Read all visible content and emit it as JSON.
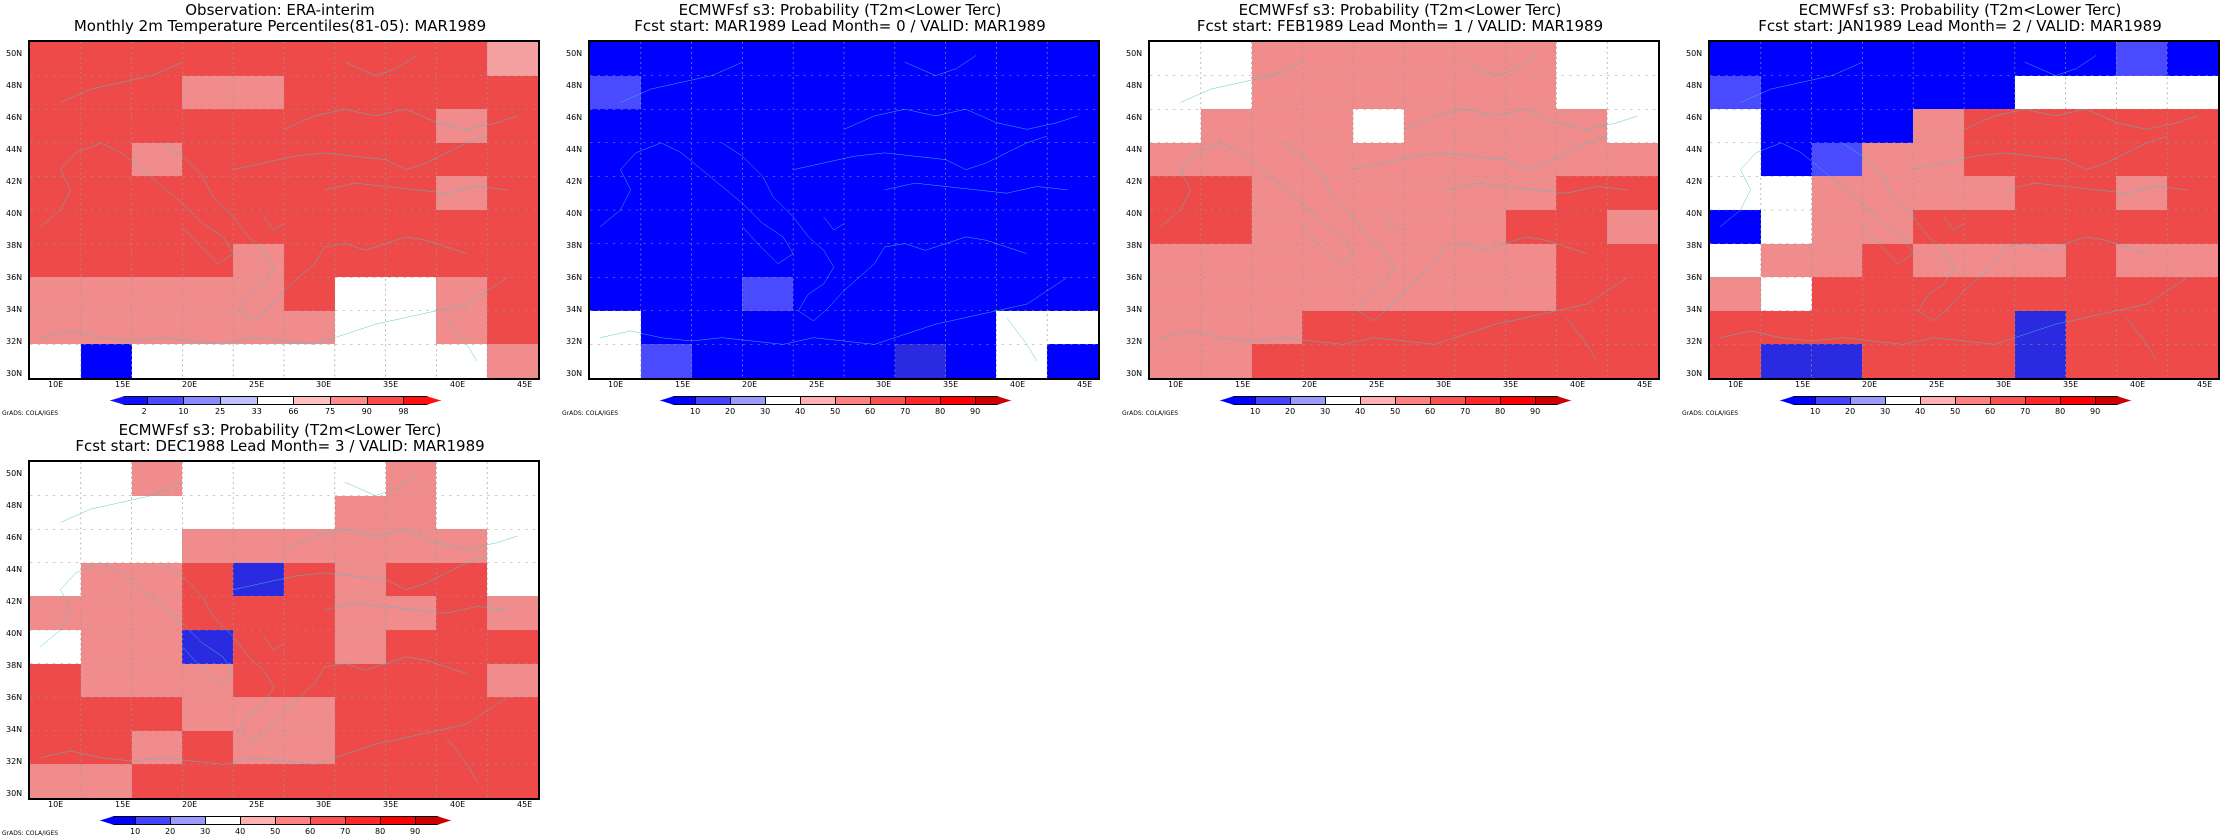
{
  "panels": [
    {
      "title_line1": "Observation: ERA-interim",
      "title_line2": "Monthly 2m Temperature Percentiles(81-05): MAR1989",
      "kind": "obs",
      "grid_pattern": [
        "RRRRRRRRRX",
        "RRRLLRRRRR",
        "RRRRRRRRLR",
        "RRLRRRRRRR",
        "RRRRRRRRLR",
        "RRRRRRRRRR",
        "RRRRLRRRRR",
        "LLLLLRWWLR",
        "LLLLLLWWLR",
        "WBWWWWWWWL"
      ]
    },
    {
      "title_line1": "ECMWFsf s3: Probability (T2m<Lower Terc)",
      "title_line2": "Fcst start: MAR1989   Lead Month= 0 / VALID: MAR1989",
      "kind": "prob",
      "grid_pattern": [
        "BBBBBBBBBB",
        "MBBBBBBBBB",
        "BBBBBBBBBB",
        "BBBBBBBBBB",
        "BBBBBBBBBB",
        "BBBBBBBBBB",
        "BBBBBBBBBB",
        "BBBMBBBBBB",
        "WBBBBBBBWW",
        "WMBBBBDBWB"
      ]
    },
    {
      "title_line1": "ECMWFsf s3: Probability (T2m<Lower Terc)",
      "title_line2": "Fcst start: FEB1989   Lead Month= 1 / VALID: MAR1989",
      "kind": "prob",
      "grid_pattern": [
        "WWLLLLLLWW",
        "WWLLLLLLWW",
        "WLLLWLLLLW",
        "LLLLLLLLLL",
        "RRLLLLLLRR",
        "RRLLLLLRRL",
        "LLLLLLLLRR",
        "LLLLLLLLRR",
        "LLLRRRRRRR",
        "LLRRRRRRRR"
      ]
    },
    {
      "title_line1": "ECMWFsf s3: Probability (T2m<Lower Terc)",
      "title_line2": "Fcst start: JAN1989   Lead Month= 2 / VALID: MAR1989",
      "kind": "prob",
      "grid_pattern": [
        "BBBBBBBBMB",
        "MBBBBBWWWW",
        "WBBBLRRRRR",
        "WBMLLRRRRR",
        "WWLLLLRRLR",
        "BWLLRRRRRR",
        "WLLRLLLRLL",
        "LWRRRRRRRR",
        "RRRRRRDRRR",
        "RDDRRRDRRR"
      ]
    },
    {
      "title_line1": "ECMWFsf s3: Probability (T2m<Lower Terc)",
      "title_line2": "Fcst start: DEC1988   Lead Month= 3 / VALID: MAR1989",
      "kind": "prob",
      "grid_pattern": [
        "WWLWWWWLWW",
        "WWWWWWLLWW",
        "WWWLLLLLLW",
        "WLLRDRLRRW",
        "LLLRRRLLRL",
        "WLLDRRLRRR",
        "RLLLRRRRRL",
        "RRRLLLRRRR",
        "RRLRLLRRRR",
        "LLRRRRRRRR"
      ]
    }
  ],
  "lat_labels": [
    "50N",
    "48N",
    "46N",
    "44N",
    "42N",
    "40N",
    "38N",
    "36N",
    "34N",
    "32N",
    "30N"
  ],
  "lon_labels": [
    "10E",
    "15E",
    "20E",
    "25E",
    "30E",
    "35E",
    "40E",
    "45E"
  ],
  "colorbar_obs": {
    "ticks": [
      "2",
      "10",
      "25",
      "33",
      "66",
      "75",
      "90",
      "98"
    ],
    "colors": [
      "#1010ff",
      "#4a4aff",
      "#8a8aff",
      "#c0c0ff",
      "#ffffff",
      "#ffc0c0",
      "#ff8a8a",
      "#ff4a4a",
      "#ff1010"
    ]
  },
  "colorbar_prob": {
    "ticks": [
      "10",
      "20",
      "30",
      "40",
      "50",
      "60",
      "70",
      "80",
      "90"
    ],
    "colors": [
      "#0000ff",
      "#4444ff",
      "#9a9aff",
      "#ffffff",
      "#ffb0b0",
      "#ff8080",
      "#ff5050",
      "#ff2828",
      "#ff0000",
      "#cc0000"
    ]
  },
  "palette": {
    "B": "#0000ff",
    "M": "#4a4aff",
    "D": "#2a2ae0",
    "W": "#ffffff",
    "L": "#f08c8c",
    "R": "#ee4a4a",
    "X": "#f4a0a0"
  },
  "coast_color": "#40c8c8",
  "grads_label": "GrADS: COLA/IGES"
}
